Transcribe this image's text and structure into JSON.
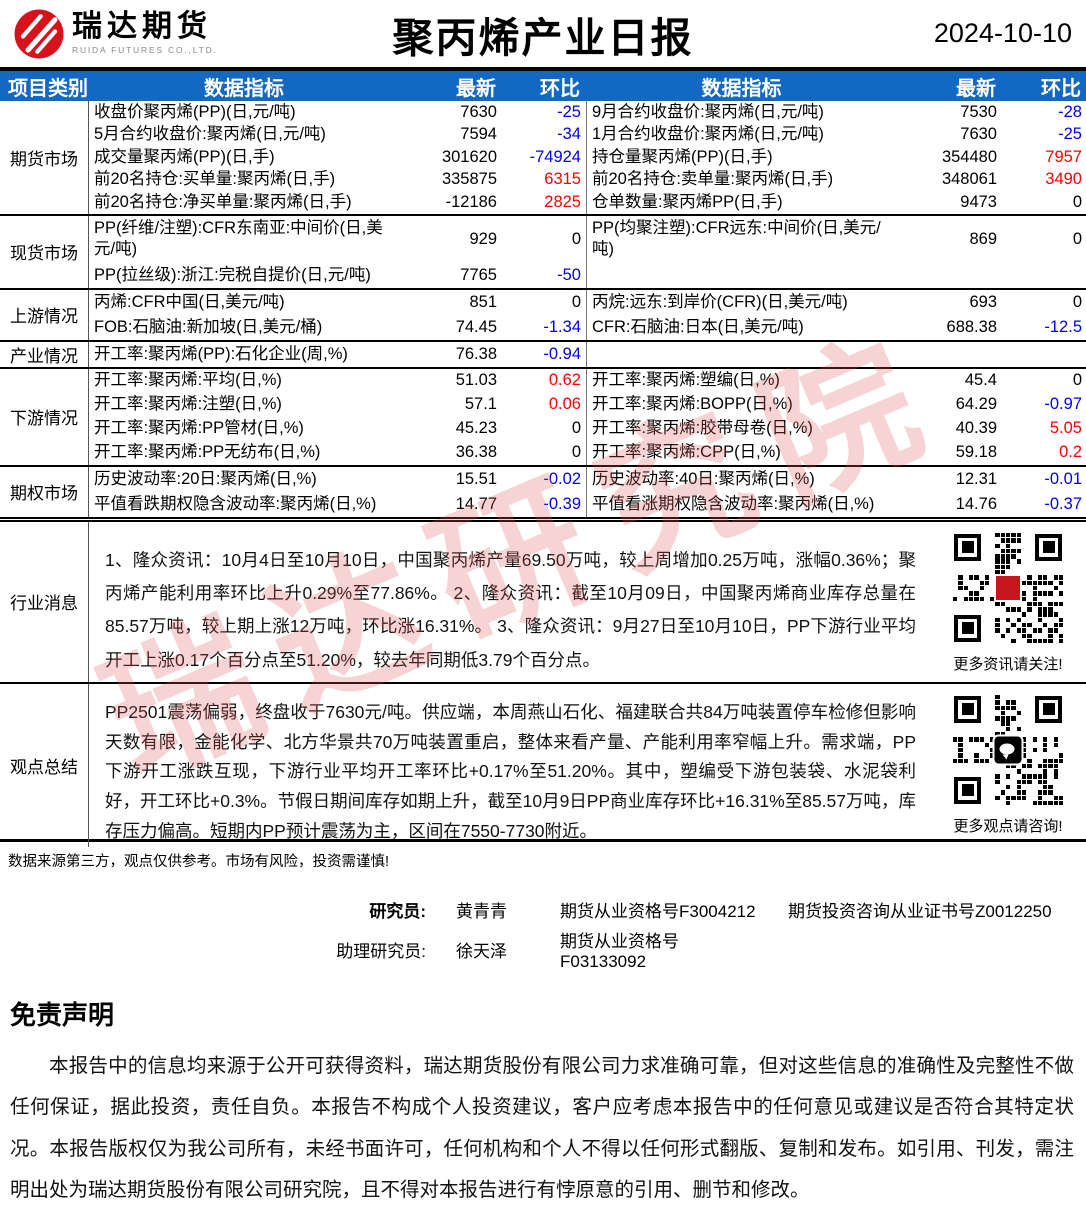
{
  "header": {
    "logo_cn": "瑞达期货",
    "logo_en": "RUIDA FUTURES CO.,LTD.",
    "title": "聚丙烯产业日报",
    "date": "2024-10-10"
  },
  "colors": {
    "header_blue": "#1268c2",
    "positive": "#fe0000",
    "negative": "#0000ee",
    "logo_red": "#d8121c",
    "watermark_red": "rgba(219,90,90,0.26)"
  },
  "watermark": "瑞达研究院",
  "table": {
    "columns": [
      "项目类别",
      "数据指标",
      "最新",
      "环比",
      "数据指标",
      "最新",
      "环比"
    ],
    "sections": [
      {
        "name": "期货市场",
        "rows": [
          [
            "收盘价聚丙烯(PP)(日,元/吨)",
            "7630",
            "-25",
            "9月合约收盘价:聚丙烯(日,元/吨)",
            "7530",
            "-28"
          ],
          [
            "5月合约收盘价:聚丙烯(日,元/吨)",
            "7594",
            "-34",
            "1月合约收盘价:聚丙烯(日,元/吨)",
            "7630",
            "-25"
          ],
          [
            "成交量聚丙烯(PP)(日,手)",
            "301620",
            "-74924",
            "持仓量聚丙烯(PP)(日,手)",
            "354480",
            "7957"
          ],
          [
            "前20名持仓:买单量:聚丙烯(日,手)",
            "335875",
            "6315",
            "前20名持仓:卖单量:聚丙烯(日,手)",
            "348061",
            "3490"
          ],
          [
            "前20名持仓:净买单量:聚丙烯(日,手)",
            "-12186",
            "2825",
            "仓单数量:聚丙烯PP(日,手)",
            "9473",
            "0"
          ]
        ]
      },
      {
        "name": "现货市场",
        "rows": [
          [
            "PP(纤维/注塑):CFR东南亚:中间价(日,美元/吨)",
            "929",
            "0",
            "PP(均聚注塑):CFR远东:中间价(日,美元/吨)",
            "869",
            "0"
          ],
          [
            "PP(拉丝级):浙江:完税自提价(日,元/吨)",
            "7765",
            "-50",
            "",
            "",
            ""
          ]
        ]
      },
      {
        "name": "上游情况",
        "rows": [
          [
            "丙烯:CFR中国(日,美元/吨)",
            "851",
            "0",
            "丙烷:远东:到岸价(CFR)(日,美元/吨)",
            "693",
            "0"
          ],
          [
            "FOB:石脑油:新加坡(日,美元/桶)",
            "74.45",
            "-1.34",
            "CFR:石脑油:日本(日,美元/吨)",
            "688.38",
            "-12.5"
          ]
        ]
      },
      {
        "name": "产业情况",
        "rows": [
          [
            "开工率:聚丙烯(PP):石化企业(周,%)",
            "76.38",
            "-0.94",
            "",
            "",
            ""
          ]
        ]
      },
      {
        "name": "下游情况",
        "rows": [
          [
            "开工率:聚丙烯:平均(日,%)",
            "51.03",
            "0.62",
            "开工率:聚丙烯:塑编(日,%)",
            "45.4",
            "0"
          ],
          [
            "开工率:聚丙烯:注塑(日,%)",
            "57.1",
            "0.06",
            "开工率:聚丙烯:BOPP(日,%)",
            "64.29",
            "-0.97"
          ],
          [
            "开工率:聚丙烯:PP管材(日,%)",
            "45.23",
            "0",
            "开工率:聚丙烯:胶带母卷(日,%)",
            "40.39",
            "5.05"
          ],
          [
            "开工率:聚丙烯:PP无纺布(日,%)",
            "36.38",
            "0",
            "开工率:聚丙烯:CPP(日,%)",
            "59.18",
            "0.2"
          ]
        ]
      },
      {
        "name": "期权市场",
        "rows": [
          [
            "历史波动率:20日:聚丙烯(日,%)",
            "15.51",
            "-0.02",
            "历史波动率:40日:聚丙烯(日,%)",
            "12.31",
            "-0.01"
          ],
          [
            "平值看跌期权隐含波动率:聚丙烯(日,%)",
            "14.77",
            "-0.39",
            "平值看涨期权隐含波动率:聚丙烯(日,%)",
            "14.76",
            "-0.37"
          ]
        ]
      }
    ],
    "news": {
      "name": "行业消息",
      "text": "1、隆众资讯：10月4日至10月10日，中国聚丙烯产量69.50万吨，较上周增加0.25万吨，涨幅0.36%；聚丙烯产能利用率环比上升0.29%至77.86%。 2、隆众资讯：截至10月09日，中国聚丙烯商业库存总量在85.57万吨，较上期上涨12万吨，环比涨16.31%。 3、隆众资讯：9月27日至10月10日，PP下游行业平均开工上涨0.17个百分点至51.20%，较去年同期低3.79个百分点。",
      "qr_caption": "更多资讯请关注!"
    },
    "summary": {
      "name": "观点总结",
      "text": "PP2501震荡偏弱，终盘收于7630元/吨。供应端，本周燕山石化、福建联合共84万吨装置停车检修但影响天数有限，金能化学、北方华景共70万吨装置重启，整体来看产量、产能利用率窄幅上升。需求端，PP下游开工涨跌互现，下游行业平均开工率环比+0.17%至51.20%。其中，塑编受下游包装袋、水泥袋利好，开工环比+0.3%。节假日期间库存如期上升，截至10月9日PP商业库存环比+16.31%至85.57万吨，库存压力偏高。短期内PP预计震荡为主，区间在7550-7730附近。",
      "qr_caption": "更多观点请咨询!"
    }
  },
  "footer": {
    "note": "数据来源第三方，观点仅供参考。市场有风险，投资需谨慎!",
    "researcher_label": "研究员:",
    "researcher_name": "黄青青",
    "researcher_cert": "期货从业资格号F3004212",
    "researcher_cert2": "期货投资咨询从业证书号Z0012250",
    "assistant_label": "助理研究员:",
    "assistant_name": "徐天泽",
    "assistant_cert": "期货从业资格号F03133092"
  },
  "disclaimer": {
    "title": "免责声明",
    "body": "本报告中的信息均来源于公开可获得资料，瑞达期货股份有限公司力求准确可靠，但对这些信息的准确性及完整性不做任何保证，据此投资，责任自负。本报告不构成个人投资建议，客户应考虑本报告中的任何意见或建议是否符合其特定状况。本报告版权仅为我公司所有，未经书面许可，任何机构和个人不得以任何形式翻版、复制和发布。如引用、刊发，需注明出处为瑞达期货股份有限公司研究院，且不得对本报告进行有悖原意的引用、删节和修改。"
  }
}
